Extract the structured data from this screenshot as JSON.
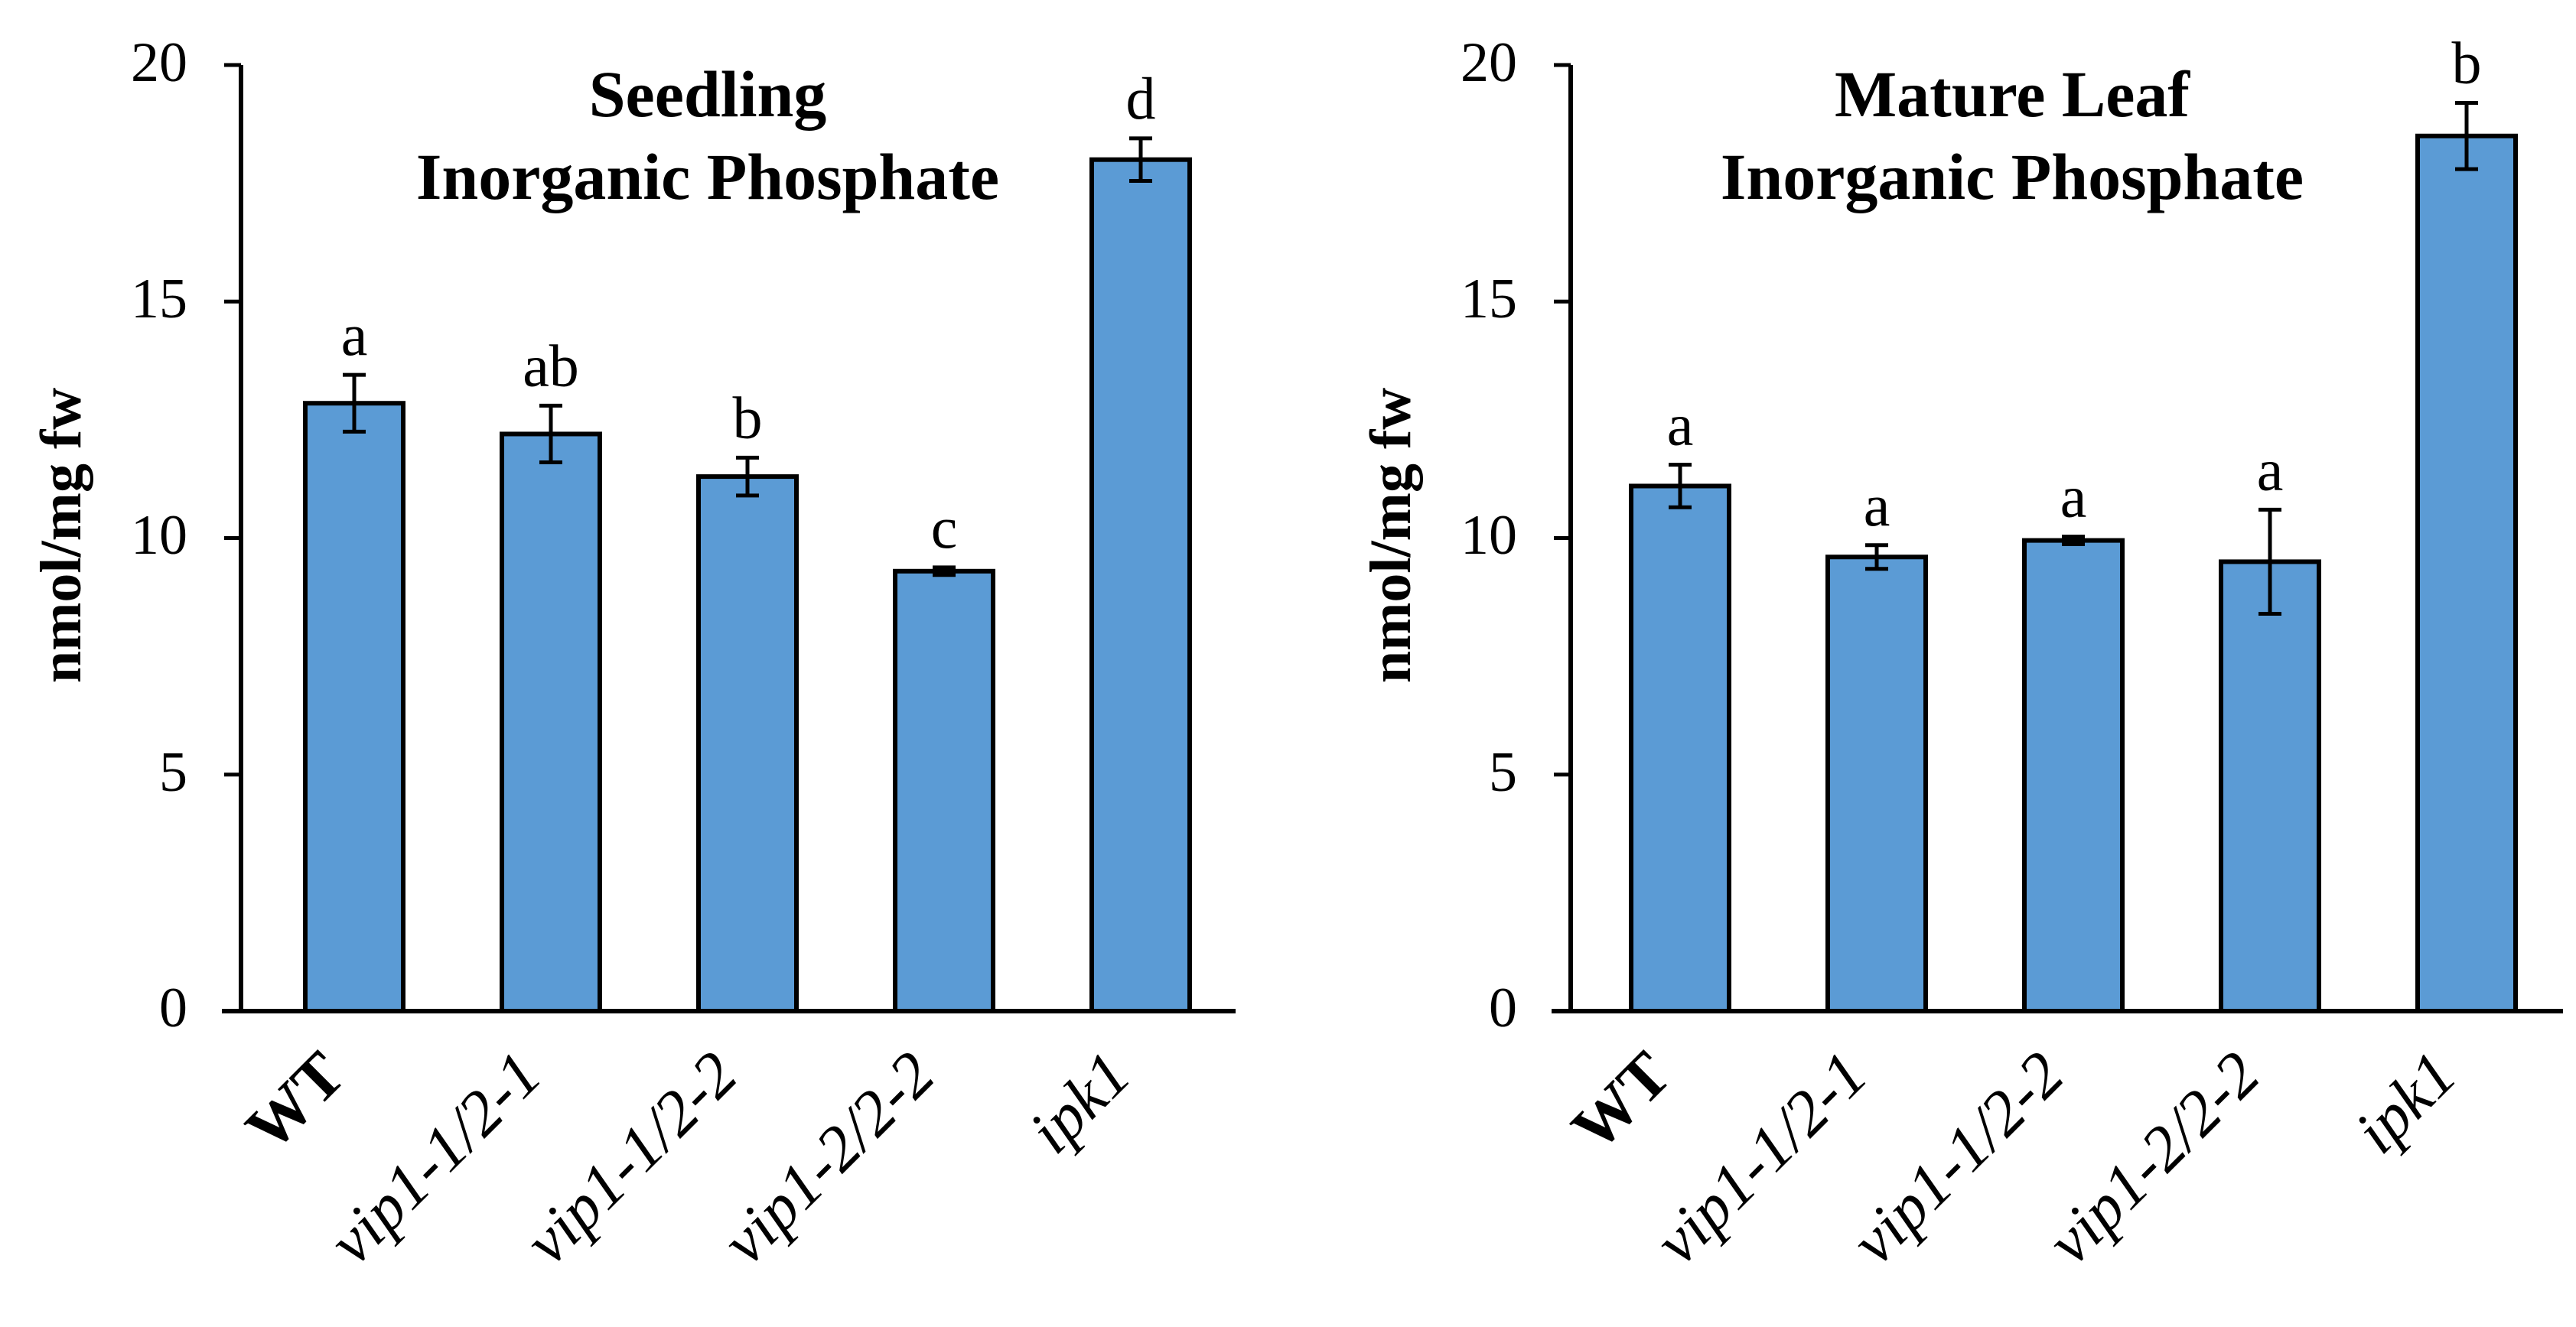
{
  "chart_data": [
    {
      "type": "bar",
      "title": [
        "Seedling",
        "Inorganic Phosphate"
      ],
      "xlabel": "",
      "ylabel": "nmol/mg fw",
      "ylim": [
        0,
        20
      ],
      "yticks": [
        "0",
        "5",
        "10",
        "15",
        "20"
      ],
      "categories": [
        "WT",
        "vip1-1/2-1",
        "vip1-1/2-2",
        "vip1-2/2-2",
        "ipk1"
      ],
      "values": [
        12.85,
        12.2,
        11.3,
        9.3,
        18.0
      ],
      "errors": [
        0.6,
        0.6,
        0.4,
        0.08,
        0.45
      ],
      "significance": [
        "a",
        "ab",
        "b",
        "c",
        "d"
      ],
      "bar_color": "#5b9bd5"
    },
    {
      "type": "bar",
      "title": [
        "Mature Leaf",
        "Inorganic Phosphate"
      ],
      "xlabel": "",
      "ylabel": "nmol/mg fw",
      "ylim": [
        0,
        20
      ],
      "yticks": [
        "0",
        "5",
        "10",
        "15",
        "20"
      ],
      "categories": [
        "WT",
        "vip1-1/2-1",
        "vip1-1/2-2",
        "vip1-2/2-2",
        "ipk1"
      ],
      "values": [
        11.1,
        9.6,
        9.95,
        9.5,
        18.5
      ],
      "errors": [
        0.45,
        0.25,
        0.08,
        1.1,
        0.7
      ],
      "significance": [
        "a",
        "a",
        "a",
        "a",
        "b"
      ],
      "bar_color": "#5b9bd5"
    }
  ]
}
